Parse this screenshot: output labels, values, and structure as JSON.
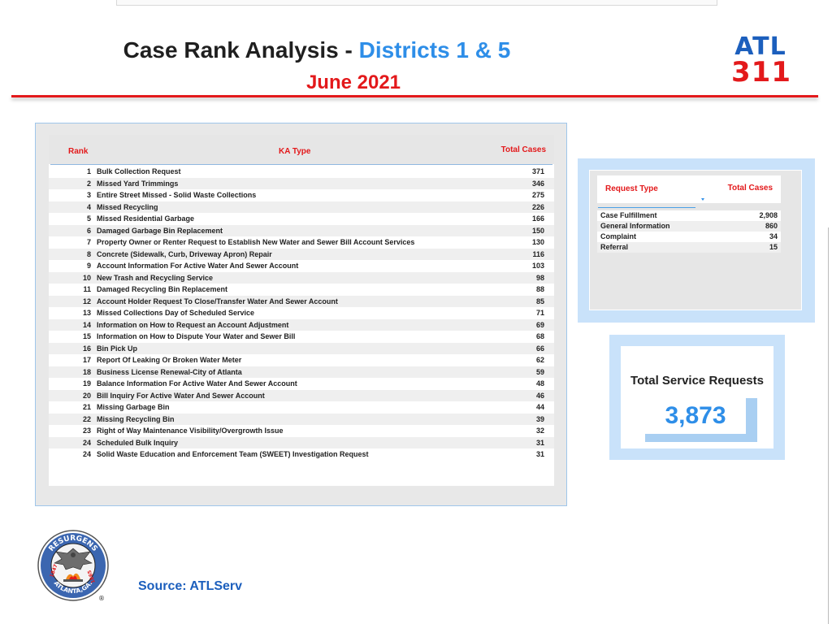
{
  "header": {
    "title_prefix": "Case Rank Analysis - ",
    "title_accent": "Districts 1 & 5",
    "subtitle": "June 2021"
  },
  "logo": {
    "line1": "ATL",
    "line2": "311"
  },
  "colors": {
    "red": "#e3191b",
    "blue": "#2e8ee8",
    "dark_blue": "#1c5fbd",
    "light_blue": "#c9e2fa"
  },
  "rank_table": {
    "headers": {
      "rank": "Rank",
      "type": "KA Type",
      "total": "Total Cases"
    },
    "rows": [
      {
        "rank": "1",
        "type": "Bulk Collection Request",
        "total": "371"
      },
      {
        "rank": "2",
        "type": "Missed Yard Trimmings",
        "total": "346"
      },
      {
        "rank": "3",
        "type": "Entire Street Missed - Solid Waste Collections",
        "total": "275"
      },
      {
        "rank": "4",
        "type": "Missed Recycling",
        "total": "226"
      },
      {
        "rank": "5",
        "type": "Missed Residential Garbage",
        "total": "166"
      },
      {
        "rank": "6",
        "type": "Damaged Garbage Bin Replacement",
        "total": "150"
      },
      {
        "rank": "7",
        "type": "Property Owner or Renter Request to Establish New Water and Sewer Bill Account Services",
        "total": "130"
      },
      {
        "rank": "8",
        "type": "Concrete (Sidewalk, Curb, Driveway Apron) Repair",
        "total": "116"
      },
      {
        "rank": "9",
        "type": "Account Information For Active Water And Sewer Account",
        "total": "103"
      },
      {
        "rank": "10",
        "type": "New Trash and Recycling Service",
        "total": "98"
      },
      {
        "rank": "11",
        "type": "Damaged Recycling Bin Replacement",
        "total": "88"
      },
      {
        "rank": "12",
        "type": "Account Holder Request To Close/Transfer Water And Sewer Account",
        "total": "85"
      },
      {
        "rank": "13",
        "type": "Missed Collections Day of Scheduled Service",
        "total": "71"
      },
      {
        "rank": "14",
        "type": "Information on How to Request an Account Adjustment",
        "total": "69"
      },
      {
        "rank": "15",
        "type": "Information on How to Dispute Your Water and Sewer Bill",
        "total": "68"
      },
      {
        "rank": "16",
        "type": "Bin Pick Up",
        "total": "66"
      },
      {
        "rank": "17",
        "type": "Report Of Leaking Or Broken Water Meter",
        "total": "62"
      },
      {
        "rank": "18",
        "type": "Business License Renewal-City of Atlanta",
        "total": "59"
      },
      {
        "rank": "19",
        "type": "Balance Information For Active Water And Sewer Account",
        "total": "48"
      },
      {
        "rank": "20",
        "type": "Bill Inquiry For Active Water And Sewer Account",
        "total": "46"
      },
      {
        "rank": "21",
        "type": "Missing Garbage Bin",
        "total": "44"
      },
      {
        "rank": "22",
        "type": "Missing Recycling Bin",
        "total": "39"
      },
      {
        "rank": "23",
        "type": "Right of Way Maintenance Visibility/Overgrowth Issue",
        "total": "32"
      },
      {
        "rank": "24",
        "type": "Scheduled Bulk Inquiry",
        "total": "31"
      },
      {
        "rank": "24",
        "type": "Solid Waste Education and Enforcement Team (SWEET) Investigation Request",
        "total": "31"
      }
    ]
  },
  "request_table": {
    "headers": {
      "type": "Request Type",
      "total": "Total Cases"
    },
    "rows": [
      {
        "type": "Case Fulfillment",
        "total": "2,908"
      },
      {
        "type": "General Information",
        "total": "860"
      },
      {
        "type": "Complaint",
        "total": "34"
      },
      {
        "type": "Referral",
        "total": "15"
      }
    ]
  },
  "total_card": {
    "label": "Total Service Requests",
    "value": "3,873"
  },
  "seal": {
    "top_text": "RESURGENS",
    "year_left": "1847",
    "year_right": "1865",
    "bottom_text": "ATLANTA,GA.",
    "mark": "®"
  },
  "footer": {
    "source": "Source: ATLServ"
  }
}
